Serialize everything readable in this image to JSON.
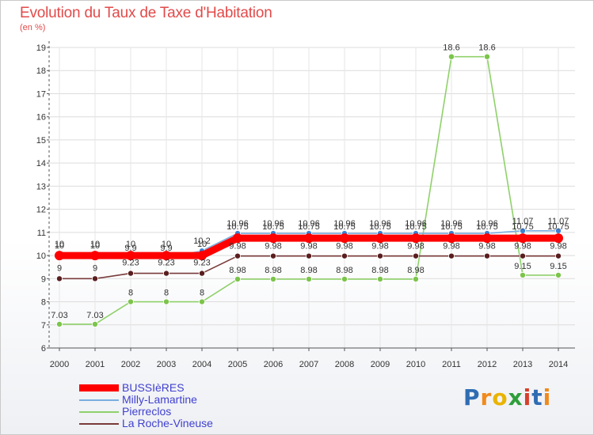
{
  "chart_data": {
    "type": "line",
    "title": "Evolution du Taux de Taxe d'Habitation",
    "subtitle": "(en %)",
    "xlabel": "",
    "ylabel": "",
    "ylim": [
      6,
      19
    ],
    "yticks": [
      6,
      7,
      8,
      9,
      10,
      11,
      12,
      13,
      14,
      15,
      16,
      17,
      18,
      19
    ],
    "x": [
      2000,
      2001,
      2002,
      2003,
      2004,
      2005,
      2006,
      2007,
      2008,
      2009,
      2010,
      2011,
      2012,
      2013,
      2014
    ],
    "legend_position": "bottom-left",
    "series": [
      {
        "name": "Pierreclos",
        "color": "#8fd16a",
        "marker_color": "#7cc44a",
        "values": [
          7.03,
          7.03,
          8,
          8,
          8,
          8.98,
          8.98,
          8.98,
          8.98,
          8.98,
          8.98,
          18.6,
          18.6,
          9.15,
          9.15
        ],
        "labels": [
          "7.03",
          "7.03",
          "8",
          "8",
          "8",
          "8.98",
          "8.98",
          "8.98",
          "8.98",
          "8.98",
          "8.98",
          "18.6",
          "18.6",
          "9.15",
          "9.15"
        ]
      },
      {
        "name": "La Roche-Vineuse",
        "color": "#7a3a3a",
        "marker_color": "#5a1e1e",
        "values": [
          9,
          9,
          9.23,
          9.23,
          9.23,
          9.98,
          9.98,
          9.98,
          9.98,
          9.98,
          9.98,
          9.98,
          9.98,
          9.98,
          9.98
        ],
        "labels": [
          "9",
          "9",
          "9.23",
          "9.23",
          "9.23",
          "9.98",
          "9.98",
          "9.98",
          "9.98",
          "9.98",
          "9.98",
          "9.98",
          "9.98",
          "9.98",
          "9.98"
        ]
      },
      {
        "name": "Milly-Lamartine",
        "color": "#7aaee0",
        "marker_color": "#3b7fd0",
        "values": [
          10,
          10,
          9.9,
          9.9,
          10.2,
          10.96,
          10.96,
          10.96,
          10.96,
          10.96,
          10.96,
          10.96,
          10.96,
          11.07,
          11.07
        ],
        "labels": [
          "10",
          "10",
          "9.9",
          "9.9",
          "10.2",
          "10.96",
          "10.96",
          "10.96",
          "10.96",
          "10.96",
          "10.96",
          "10.96",
          "10.96",
          "11.07",
          "11.07"
        ]
      },
      {
        "name": "BUSSIèRES",
        "color": "#ff0000",
        "marker_color": "#ff0000",
        "values": [
          10,
          10,
          10,
          10,
          10,
          10.75,
          10.75,
          10.75,
          10.75,
          10.75,
          10.75,
          10.75,
          10.75,
          10.75,
          10.75
        ],
        "labels": [
          "10",
          "10",
          "10",
          "10",
          "10",
          "10.75",
          "10.75",
          "10.75",
          "10.75",
          "10.75",
          "10.75",
          "10.75",
          "10.75",
          "10.75",
          "10.75"
        ]
      }
    ]
  },
  "legend": {
    "items": [
      {
        "name": "BUSSIèRES",
        "color": "#ff0000"
      },
      {
        "name": "Milly-Lamartine",
        "color": "#7aaee0"
      },
      {
        "name": "Pierreclos",
        "color": "#8fd16a"
      },
      {
        "name": "La Roche-Vineuse",
        "color": "#7a3a3a"
      }
    ]
  },
  "logo": {
    "letters": [
      "P",
      "r",
      "o",
      "x",
      "i",
      "t",
      "i"
    ],
    "colors": [
      "#2f6db3",
      "#f08a1c",
      "#e9b400",
      "#2f9e3a",
      "#d6402b",
      "#2f6db3",
      "#f08a1c"
    ]
  }
}
